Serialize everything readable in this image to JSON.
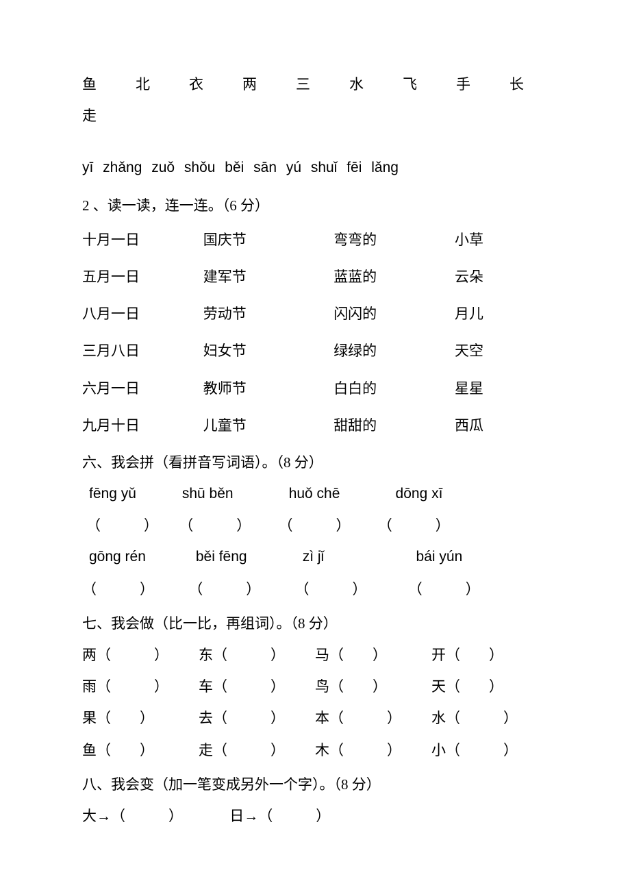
{
  "charRow": "鱼　北　衣　两　三　水　飞　手　长　走",
  "pinyinRow": "yī   zhǎng   zuǒ   shǒu   běi   sān    yú   shuǐ   fēi   lǎng",
  "section2Title": "2 、读一读，连一连。（6 分）",
  "matchRows": [
    [
      "十月一日",
      "国庆节",
      "弯弯的",
      "小草"
    ],
    [
      "五月一日",
      "建军节",
      "蓝蓝的",
      "云朵"
    ],
    [
      "八月一日",
      "劳动节",
      "闪闪的",
      "月儿"
    ],
    [
      "三月八日",
      "妇女节",
      "绿绿的",
      "天空"
    ],
    [
      "六月一日",
      "教师节",
      "白白的",
      "星星"
    ],
    [
      "九月十日",
      "儿童节",
      "甜甜的",
      "西瓜"
    ]
  ],
  "section6Title": "六、我会拼（看拼音写词语）。（8 分）",
  "pinyinWords1": [
    "fēng yǔ",
    "shū běn",
    "huǒ chē",
    "dōng xī"
  ],
  "pinyinWords2": [
    "gōng rén",
    "běi fēng",
    "zì   jǐ",
    "bái yún"
  ],
  "section7Title": "七、我会做（比一比，再组词）。（8 分）",
  "compareRows": [
    [
      "两（　　　）",
      "东（　　　）",
      "马（　　）",
      "开（　　）"
    ],
    [
      "雨（　　　）",
      "车（　　　）",
      "鸟（　　）",
      "天（　　）"
    ],
    [
      "果（　　）",
      "去（　　　）",
      "本（　　　）",
      "水（　　　）"
    ],
    [
      "鱼（　　）",
      "走（　　　）",
      "木（　　　）",
      "小（　　　）"
    ]
  ],
  "section8Title": "八、我会变（加一笔变成另外一个字）。（8 分）",
  "transformRow": [
    "大→（　　　）",
    "日→（　　　）"
  ]
}
